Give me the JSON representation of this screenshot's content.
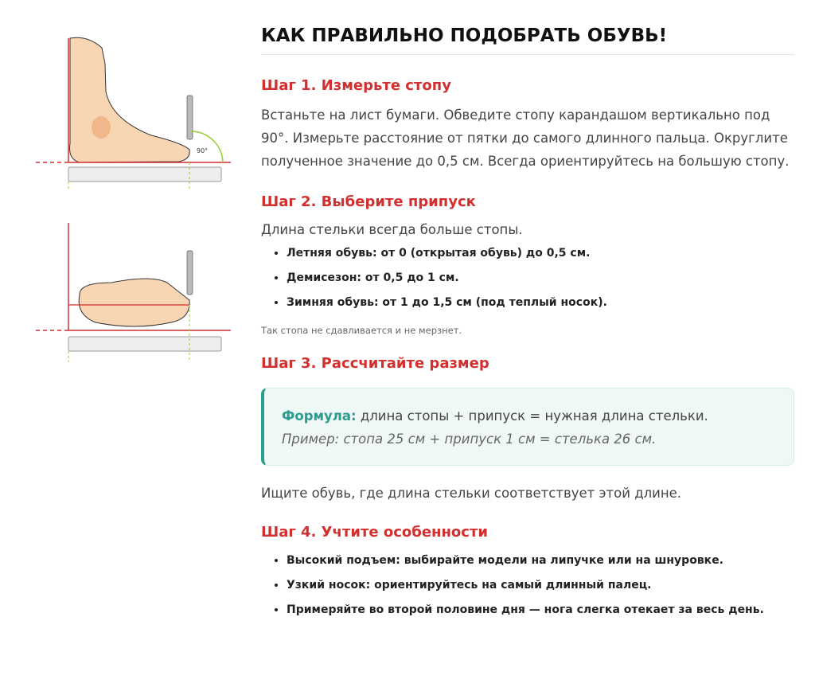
{
  "title": "КАК ПРАВИЛЬНО ПОДОБРАТЬ ОБУВЬ!",
  "illustrations": {
    "angle_label": "90°"
  },
  "steps": [
    {
      "heading": "Шаг 1. Измерьте стопу",
      "text": "Встаньте на лист бумаги. Обведите стопу карандашом вертикально под 90°. Измерьте расстояние от пятки до самого длинного пальца. Округлите полученное значение до 0,5 см. Всегда ориентируйтесь на большую стопу."
    },
    {
      "heading": "Шаг 2. Выберите припуск",
      "text": "Длина стельки всегда больше стопы.",
      "items": [
        "Летняя обувь: от 0 (открытая обувь) до 0,5 см.",
        "Демисезон: от 0,5 до 1 см.",
        "Зимняя обувь: от 1 до 1,5 см (под теплый носок)."
      ],
      "note": "Так стопа не сдавливается и не мерзнет."
    },
    {
      "heading": "Шаг 3. Рассчитайте размер",
      "formula_label": "Формула:",
      "formula_text": "длина стопы + припуск = нужная длина стельки.",
      "example": "Пример: стопа 25 см + припуск 1 см = стелька 26 см.",
      "text": "Ищите обувь, где длина стельки соответствует этой длине."
    },
    {
      "heading": "Шаг 4. Учтите особенности",
      "items": [
        "Высокий подъем: выбирайте модели на липучке или на шнуровке.",
        "Узкий носок: ориентируйтесь на самый длинный палец.",
        "Примеряйте во второй половине дня — нога слегка отекает за весь день."
      ]
    }
  ],
  "colors": {
    "heading": "#d32f2f",
    "accent": "#2a9d8f",
    "formula_bg": "#f0f8f6"
  }
}
